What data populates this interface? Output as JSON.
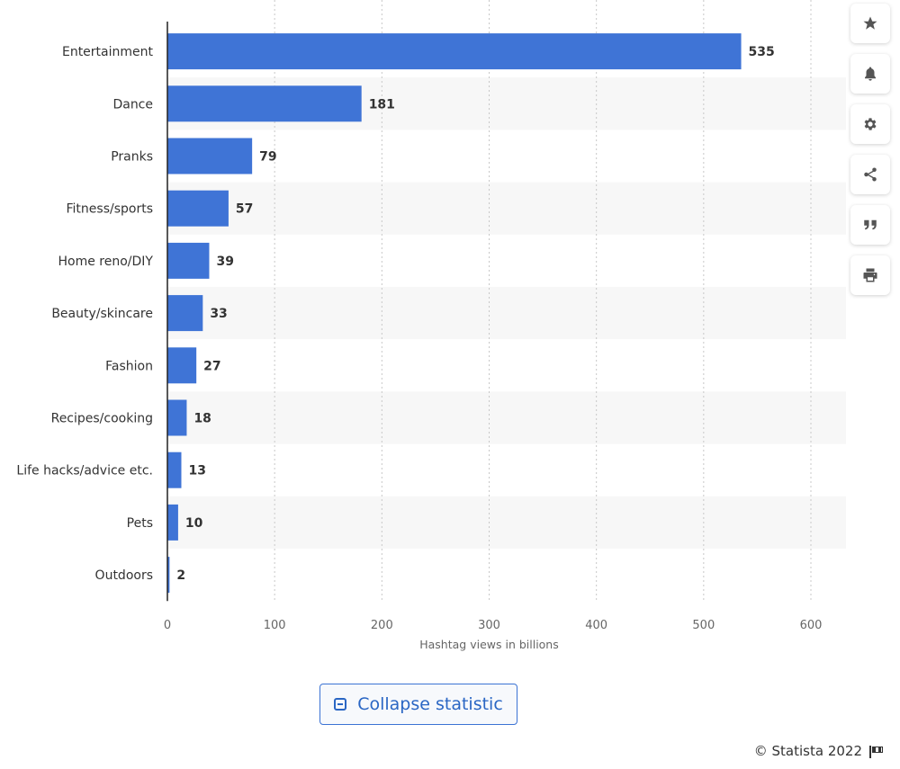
{
  "chart_data": {
    "type": "bar",
    "orientation": "horizontal",
    "categories": [
      "Entertainment",
      "Dance",
      "Pranks",
      "Fitness/sports",
      "Home reno/DIY",
      "Beauty/skincare",
      "Fashion",
      "Recipes/cooking",
      "Life hacks/advice etc.",
      "Pets",
      "Outdoors"
    ],
    "values": [
      535,
      181,
      79,
      57,
      39,
      33,
      27,
      18,
      13,
      10,
      2
    ],
    "title": "",
    "xlabel": "Hashtag views in billions",
    "ylabel": "",
    "xlim": [
      0,
      600
    ],
    "xticks": [
      0,
      100,
      200,
      300,
      400,
      500,
      600
    ],
    "grid": "vertical dotted",
    "bar_color": "#3f74d6",
    "stripe_color": "#f7f7f7"
  },
  "toolbar": {
    "items": [
      {
        "name": "star-icon"
      },
      {
        "name": "bell-icon"
      },
      {
        "name": "gear-icon"
      },
      {
        "name": "share-icon"
      },
      {
        "name": "quote-icon"
      },
      {
        "name": "print-icon"
      }
    ]
  },
  "collapse_label": "Collapse statistic",
  "credit": "© Statista 2022"
}
